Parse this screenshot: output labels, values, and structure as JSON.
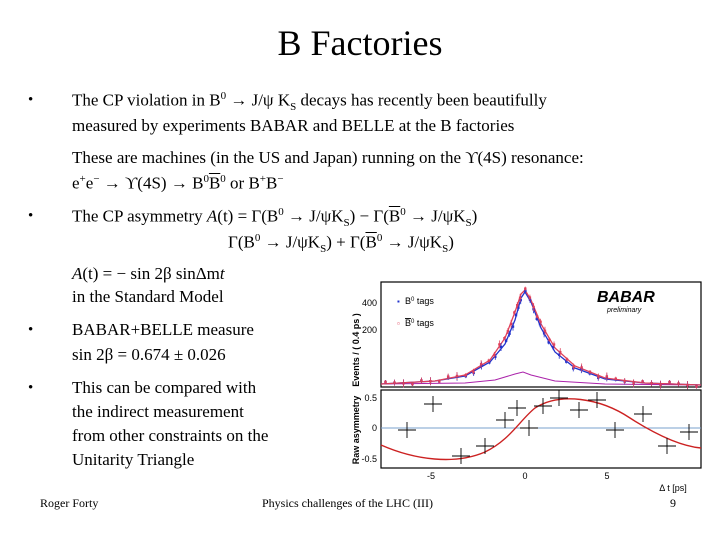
{
  "title": "B Factories",
  "b1": {
    "pre": "The CP violation in B",
    "sup0": "0",
    "mid": " → J/ψ K",
    "subS": "S",
    "post": " decays has recently been beautifully",
    "line2": "measured by experiments BABAR and BELLE at the B factories"
  },
  "p1": {
    "line1": "These are machines (in the US and Japan) running on the ϒ(4S) resonance:",
    "l2_a": "e",
    "l2_sup1": "+",
    "l2_b": "e",
    "l2_sup2": "−",
    "l2_c": " → ϒ(4S) → B",
    "l2_sup3": "0",
    "l2_d": "B",
    "l2_sup4": "0",
    "l2_e": " or B",
    "l2_sup5": "+",
    "l2_f": "B",
    "l2_sup6": "−"
  },
  "b2": {
    "label": "The CP asymmetry ",
    "A": "A",
    "t": "(t) = ",
    "num_a": "Γ(B",
    "num_s0": "0",
    "num_b": " → J/ψK",
    "num_sS": "S",
    "num_c": ") − Γ(",
    "num_d": "B",
    "num_s0b": "0",
    "num_e": " → J/ψK",
    "num_sSb": "S",
    "num_f": ")",
    "den_a": "Γ(B",
    "den_s0": "0",
    "den_b": " → J/ψK",
    "den_sS": "S",
    "den_c": ") + Γ(",
    "den_d": "B",
    "den_s0b": "0",
    "den_e": " → J/ψK",
    "den_sSb": "S",
    "den_f": ")"
  },
  "sm": {
    "A": "A",
    "expr": "(t) = − sin 2β  sinΔm",
    "t": "t",
    "line2": "in the Standard Model"
  },
  "b3": {
    "line1": "BABAR+BELLE measure",
    "line2": "sin 2β = 0.674 ± 0.026"
  },
  "b4": {
    "lines": [
      "This can be compared with",
      "the indirect measurement",
      "from other constraints on the",
      "Unitarity Triangle"
    ]
  },
  "bullet_char": "•",
  "footer": {
    "left": "Roger Forty",
    "center": "Physics challenges of the LHC  (III)",
    "right": "9"
  },
  "plot": {
    "top_ylabel": "Events / ( 0.4 ps )",
    "top_yticks": [
      "400",
      "200"
    ],
    "legend": [
      {
        "label": "B",
        "sup": "0",
        "suffix": " tags"
      },
      {
        "label": "B",
        "sup": "0",
        "suffix": " tags"
      }
    ],
    "brand": "BABAR",
    "brand_sub": "preliminary",
    "bottom_ylabel": "Raw asymmetry",
    "bottom_yticks": [
      "0.5",
      "0",
      "-0.5"
    ],
    "xticks": [
      "-5",
      "0",
      "5"
    ],
    "xlabel": "Δ t [ps]",
    "colors": {
      "b0": "#2233cc",
      "b0bar": "#e0405a",
      "fit": "#cc2222",
      "bkg": "#aa22aa"
    }
  }
}
